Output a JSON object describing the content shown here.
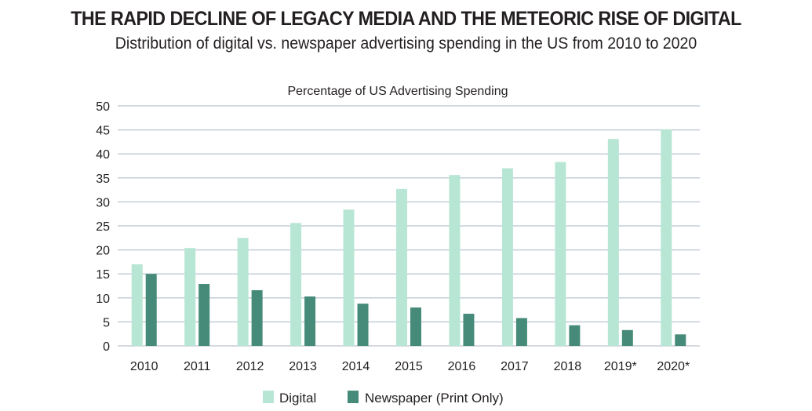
{
  "header": {
    "title": "THE RAPID DECLINE OF LEGACY MEDIA AND THE METEORIC RISE OF DIGITAL",
    "subtitle": "Distribution of digital vs. newspaper advertising spending in the US from 2010 to 2020"
  },
  "chart_data": {
    "type": "bar",
    "title": "Percentage of US Advertising Spending",
    "xlabel": "",
    "ylabel": "",
    "categories": [
      "2010",
      "2011",
      "2012",
      "2013",
      "2014",
      "2015",
      "2016",
      "2017",
      "2018",
      "2019*",
      "2020*"
    ],
    "series": [
      {
        "name": "Digital",
        "color": "#b8e6d4",
        "values": [
          17.0,
          20.4,
          22.5,
          25.6,
          28.4,
          32.7,
          35.6,
          37.0,
          38.3,
          43.1,
          45.1
        ]
      },
      {
        "name": "Newspaper (Print Only)",
        "color": "#468b79",
        "values": [
          15.0,
          12.9,
          11.6,
          10.3,
          8.8,
          8.0,
          6.7,
          5.8,
          4.3,
          3.3,
          2.4
        ]
      }
    ],
    "ylim": [
      0,
      50
    ],
    "yticks": [
      0,
      5,
      10,
      15,
      20,
      25,
      30,
      35,
      40,
      45,
      50
    ],
    "grid": true,
    "legend": "bottom"
  }
}
